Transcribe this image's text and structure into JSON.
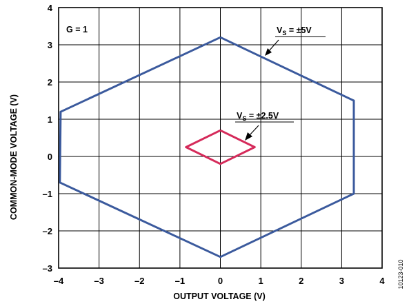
{
  "chart_data": {
    "type": "line",
    "xlabel": "OUTPUT VOLTAGE (V)",
    "ylabel": "COMMON-MODE VOLTAGE (V)",
    "xlim": [
      -4,
      4
    ],
    "ylim": [
      -3,
      4
    ],
    "x_ticks": [
      -4,
      -3,
      -2,
      -1,
      0,
      1,
      2,
      3,
      4
    ],
    "y_ticks": [
      -3,
      -2,
      -1,
      0,
      1,
      2,
      3,
      4
    ],
    "x_tick_labels": [
      "–4",
      "–3",
      "–2",
      "–1",
      "0",
      "1",
      "2",
      "3",
      "4"
    ],
    "y_tick_labels": [
      "–3",
      "–2",
      "–1",
      "0",
      "1",
      "2",
      "3",
      "4"
    ],
    "grid": true,
    "series": [
      {
        "name": "VS = ±5V",
        "color": "#3b5a9d",
        "x": [
          0,
          3.3,
          3.3,
          0,
          -3.97,
          -3.95,
          0
        ],
        "y": [
          3.2,
          1.5,
          -1.0,
          -2.7,
          -0.7,
          1.2,
          3.2
        ]
      },
      {
        "name": "VS = ±2.5V",
        "color": "#d52a5a",
        "x": [
          0,
          0.85,
          0,
          -0.85,
          0
        ],
        "y": [
          0.7,
          0.25,
          -0.2,
          0.25,
          0.7
        ]
      }
    ],
    "annotations": {
      "gain": "G = 1",
      "vs5": {
        "main": "V",
        "sub": "S",
        "rest": " = ±5V"
      },
      "vs25": {
        "main": "V",
        "sub": "S",
        "rest": " = ±2.5V"
      }
    },
    "figure_id": "10123-010"
  }
}
